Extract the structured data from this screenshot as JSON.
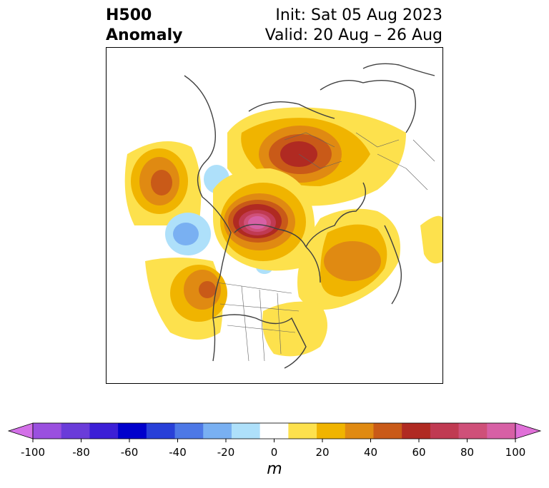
{
  "title": {
    "left_line1": "H500",
    "left_line2": "Anomaly",
    "init": "Init: Sat 05 Aug 2023",
    "valid": "Valid: 20 Aug – 26 Aug"
  },
  "colorbar": {
    "units": "m",
    "ticks": [
      "-100",
      "-80",
      "-60",
      "-40",
      "-20",
      "0",
      "20",
      "40",
      "60",
      "80",
      "100"
    ],
    "colors": [
      "#d370e8",
      "#9a4fdf",
      "#6a3cd9",
      "#3c1fd6",
      "#0000cc",
      "#2840d8",
      "#4d78e6",
      "#79b0f2",
      "#aee0fa",
      "#ffffff",
      "#fde14d",
      "#f0b400",
      "#e08a12",
      "#c95a18",
      "#b02a22",
      "#c03a52",
      "#cf5079",
      "#d760a5",
      "#e070d8"
    ]
  },
  "map": {
    "region": "North America / Arctic polar stereographic",
    "anomalies": [
      {
        "label": "positive",
        "value": 100
      },
      {
        "label": "positive",
        "value": 60
      },
      {
        "label": "positive",
        "value": 40
      },
      {
        "label": "positive",
        "value": 40
      },
      {
        "label": "positive",
        "value": 30
      },
      {
        "label": "negative",
        "value": -30
      },
      {
        "label": "negative",
        "value": -20
      }
    ]
  }
}
